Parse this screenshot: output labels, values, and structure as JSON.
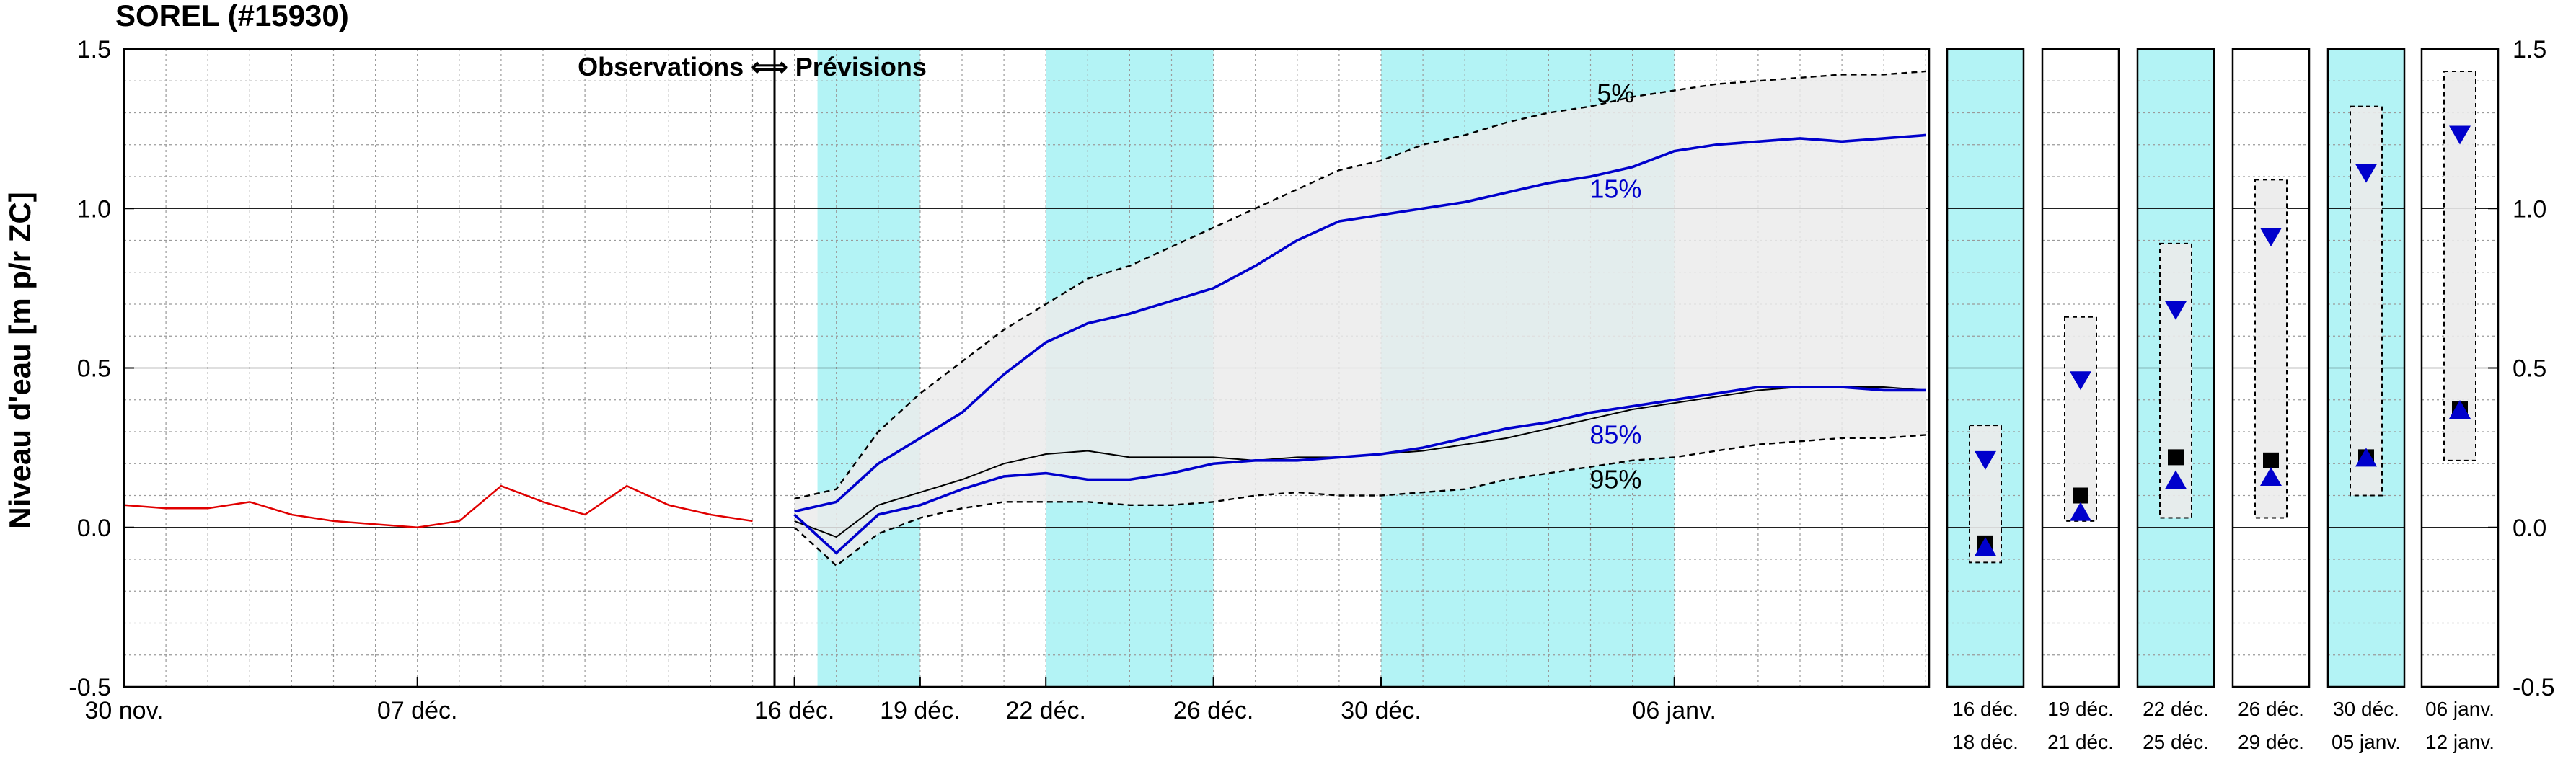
{
  "chart_data": {
    "type": "line",
    "title": "SOREL (#15930)",
    "ylabel": "Niveau d'eau [m p/r ZC]",
    "ylim": [
      -0.5,
      1.5
    ],
    "y_ticks": [
      "1.5",
      "1.0",
      "0.5",
      "0.0",
      "-0.5"
    ],
    "x_ticks": [
      "30 nov.",
      "07 déc.",
      "16 déc.",
      "19 déc.",
      "22 déc.",
      "26 déc.",
      "30 déc.",
      "06 janv."
    ],
    "annotation": "Observations ⟺ Prévisions",
    "grid": true,
    "observations": {
      "x": [
        "30 nov.",
        "01 déc.",
        "02 déc.",
        "03 déc.",
        "04 déc.",
        "05 déc.",
        "06 déc.",
        "07 déc.",
        "08 déc.",
        "09 déc.",
        "10 déc.",
        "11 déc.",
        "12 déc.",
        "13 déc.",
        "14 déc.",
        "15 déc."
      ],
      "y": [
        0.07,
        0.06,
        0.06,
        0.08,
        0.04,
        0.02,
        0.01,
        0.0,
        0.02,
        0.13,
        0.08,
        0.04,
        0.13,
        0.07,
        0.04,
        0.02
      ],
      "color": "#e00000"
    },
    "forecast_x": [
      "16 déc.",
      "17 déc.",
      "18 déc.",
      "19 déc.",
      "20 déc.",
      "21 déc.",
      "22 déc.",
      "23 déc.",
      "24 déc.",
      "25 déc.",
      "26 déc.",
      "27 déc.",
      "28 déc.",
      "29 déc.",
      "30 déc.",
      "31 déc.",
      "01 janv.",
      "02 janv.",
      "03 janv.",
      "04 janv.",
      "05 janv.",
      "06 janv.",
      "07 janv.",
      "08 janv.",
      "09 janv.",
      "10 janv.",
      "11 janv.",
      "12 janv."
    ],
    "series": [
      {
        "name": "5%",
        "style": "dashed",
        "color": "#000000",
        "values": [
          0.09,
          0.12,
          0.3,
          0.42,
          0.52,
          0.62,
          0.7,
          0.78,
          0.82,
          0.88,
          0.94,
          1.0,
          1.06,
          1.12,
          1.15,
          1.2,
          1.23,
          1.27,
          1.3,
          1.32,
          1.35,
          1.37,
          1.39,
          1.4,
          1.41,
          1.42,
          1.42,
          1.43
        ]
      },
      {
        "name": "15%",
        "style": "solid",
        "color": "#0000cc",
        "values": [
          0.05,
          0.08,
          0.2,
          0.28,
          0.36,
          0.48,
          0.58,
          0.64,
          0.67,
          0.71,
          0.75,
          0.82,
          0.9,
          0.96,
          0.98,
          1.0,
          1.02,
          1.05,
          1.08,
          1.1,
          1.13,
          1.18,
          1.2,
          1.21,
          1.22,
          1.21,
          1.22,
          1.23
        ]
      },
      {
        "name": "",
        "style": "solid-thin",
        "color": "#000000",
        "values": [
          0.02,
          -0.03,
          0.07,
          0.11,
          0.15,
          0.2,
          0.23,
          0.24,
          0.22,
          0.22,
          0.22,
          0.21,
          0.22,
          0.22,
          0.23,
          0.24,
          0.26,
          0.28,
          0.31,
          0.34,
          0.37,
          0.39,
          0.41,
          0.43,
          0.44,
          0.44,
          0.44,
          0.43
        ]
      },
      {
        "name": "85%",
        "style": "solid",
        "color": "#0000cc",
        "values": [
          0.04,
          -0.08,
          0.04,
          0.07,
          0.12,
          0.16,
          0.17,
          0.15,
          0.15,
          0.17,
          0.2,
          0.21,
          0.21,
          0.22,
          0.23,
          0.25,
          0.28,
          0.31,
          0.33,
          0.36,
          0.38,
          0.4,
          0.42,
          0.44,
          0.44,
          0.44,
          0.43,
          0.43
        ]
      },
      {
        "name": "95%",
        "style": "dashed",
        "color": "#000000",
        "values": [
          0.0,
          -0.12,
          -0.02,
          0.03,
          0.06,
          0.08,
          0.08,
          0.08,
          0.07,
          0.07,
          0.08,
          0.1,
          0.11,
          0.1,
          0.1,
          0.11,
          0.12,
          0.15,
          0.17,
          0.19,
          0.21,
          0.22,
          0.24,
          0.26,
          0.27,
          0.28,
          0.28,
          0.29
        ]
      }
    ],
    "shaded_periods": [
      [
        "16 déc.",
        "19 déc."
      ],
      [
        "22 déc.",
        "26 déc."
      ],
      [
        "30 déc.",
        "06 janv."
      ]
    ],
    "period_panels": [
      {
        "label_top": "16 déc.",
        "label_bottom": "18 déc.",
        "shaded": true,
        "box": [
          -0.11,
          0.32
        ],
        "p15": 0.21,
        "p85": -0.06,
        "median": -0.05
      },
      {
        "label_top": "19 déc.",
        "label_bottom": "21 déc.",
        "shaded": false,
        "box": [
          0.02,
          0.66
        ],
        "p15": 0.46,
        "p85": 0.05,
        "median": 0.1
      },
      {
        "label_top": "22 déc.",
        "label_bottom": "25 déc.",
        "shaded": true,
        "box": [
          0.03,
          0.89
        ],
        "p15": 0.68,
        "p85": 0.15,
        "median": 0.22
      },
      {
        "label_top": "26 déc.",
        "label_bottom": "29 déc.",
        "shaded": false,
        "box": [
          0.03,
          1.09
        ],
        "p15": 0.91,
        "p85": 0.16,
        "median": 0.21
      },
      {
        "label_top": "30 déc.",
        "label_bottom": "05 janv.",
        "shaded": true,
        "box": [
          0.1,
          1.32
        ],
        "p15": 1.11,
        "p85": 0.22,
        "median": 0.22
      },
      {
        "label_top": "06 janv.",
        "label_bottom": "12 janv.",
        "shaded": false,
        "box": [
          0.21,
          1.43
        ],
        "p15": 1.23,
        "p85": 0.37,
        "median": 0.37
      }
    ],
    "colors": {
      "shade": "#b3f3f5",
      "band": "#ebebeb",
      "blue": "#0000cc",
      "red": "#e00000"
    }
  }
}
